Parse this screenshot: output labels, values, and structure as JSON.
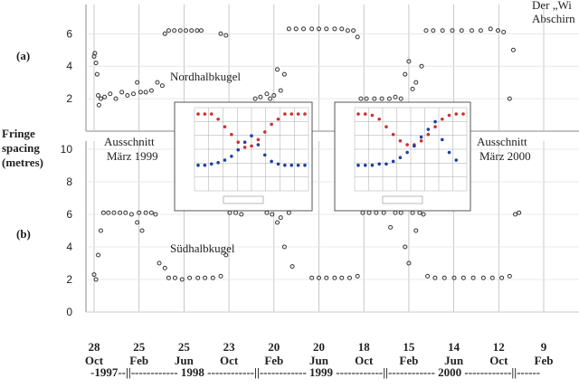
{
  "top_right_text": [
    "Der „Wi",
    "Abschirn"
  ],
  "y_axis_label": [
    "Fringe",
    "spacing",
    "(metres)"
  ],
  "year_axis": "-1997--||------------ 1998 ------------||------------ 1999 ------------||------------ 2000 ------------||------",
  "annotations": {
    "north": "Nordhalbkugel",
    "south": "Südhalbkugel",
    "cut1": [
      "Ausschnitt",
      "März 1999"
    ],
    "cut2": [
      "Ausschnitt",
      "März 2000"
    ]
  },
  "insets": [
    {
      "series": [
        {
          "color": "#d03030",
          "values": [
            6.0,
            6.0,
            6.0,
            5.6,
            5.0,
            4.4,
            3.8,
            3.4,
            3.5,
            4.0,
            4.6,
            5.2,
            5.6,
            6.0,
            6.0,
            6.0,
            6.0
          ]
        },
        {
          "color": "#2040a0",
          "values": [
            2.0,
            2.0,
            2.1,
            2.2,
            2.4,
            2.7,
            3.2,
            3.8,
            4.3,
            3.6,
            2.8,
            2.3,
            2.1,
            2.0,
            2.0,
            2.0,
            2.0
          ]
        }
      ]
    },
    {
      "series": [
        {
          "color": "#d03030",
          "values": [
            6.0,
            6.0,
            5.9,
            5.6,
            5.0,
            4.4,
            3.9,
            3.6,
            3.6,
            3.9,
            4.4,
            5.0,
            5.6,
            5.9,
            6.0,
            6.0
          ]
        },
        {
          "color": "#2040a0",
          "values": [
            2.0,
            2.0,
            2.0,
            2.1,
            2.1,
            2.3,
            2.6,
            3.0,
            3.5,
            4.2,
            4.8,
            5.4,
            4.0,
            3.0,
            2.4
          ]
        }
      ]
    }
  ],
  "chart_data": [
    {
      "type": "scatter",
      "label": "(a)",
      "color": "#333333",
      "xlim": [
        "1997-10-28",
        "2001-02-09"
      ],
      "ylim": [
        0,
        7.8
      ],
      "yticks": [
        2,
        4,
        6
      ],
      "xticks": [
        {
          "value": "1997-10-28",
          "label": "28 Oct"
        },
        {
          "value": "1998-02-25",
          "label": "25 Feb"
        },
        {
          "value": "1998-06-25",
          "label": "25 Jun"
        },
        {
          "value": "1998-10-23",
          "label": "23 Oct"
        },
        {
          "value": "1999-02-20",
          "label": "20 Feb"
        },
        {
          "value": "1999-06-20",
          "label": "20 Jun"
        },
        {
          "value": "1999-10-18",
          "label": "18 Oct"
        },
        {
          "value": "2000-02-15",
          "label": "15 Feb"
        },
        {
          "value": "2000-06-14",
          "label": "14 Jun"
        },
        {
          "value": "2000-10-12",
          "label": "12 Oct"
        },
        {
          "value": "2001-02-09",
          "label": "9 Feb"
        }
      ],
      "x": [
        "1997-10-28",
        "1997-10-30",
        "1997-11-02",
        "1997-11-05",
        "1997-11-08",
        "1997-11-10",
        "1997-11-15",
        "1997-11-25",
        "1997-12-10",
        "1997-12-25",
        "1998-01-10",
        "1998-01-25",
        "1998-02-10",
        "1998-02-20",
        "1998-03-01",
        "1998-03-15",
        "1998-03-30",
        "1998-04-15",
        "1998-04-28",
        "1998-05-05",
        "1998-05-15",
        "1998-05-30",
        "1998-06-15",
        "1998-06-30",
        "1998-07-15",
        "1998-07-30",
        "1998-08-10",
        "1998-10-01",
        "1998-10-15",
        "1999-01-01",
        "1999-01-15",
        "1999-02-01",
        "1999-02-10",
        "1999-02-20",
        "1999-03-01",
        "1999-03-10",
        "1999-03-20",
        "1999-04-01",
        "1999-04-20",
        "1999-05-10",
        "1999-06-01",
        "1999-06-20",
        "1999-07-10",
        "1999-08-01",
        "1999-08-20",
        "1999-09-05",
        "1999-09-20",
        "1999-10-01",
        "1999-10-10",
        "1999-10-25",
        "1999-11-15",
        "1999-12-05",
        "1999-12-25",
        "2000-01-10",
        "2000-01-25",
        "2000-02-05",
        "2000-02-15",
        "2000-02-25",
        "2000-03-05",
        "2000-03-20",
        "2000-04-01",
        "2000-04-20",
        "2000-05-15",
        "2000-06-10",
        "2000-07-05",
        "2000-08-01",
        "2000-08-25",
        "2000-09-20",
        "2000-10-10",
        "2000-10-25",
        "2000-11-10",
        "2000-11-20"
      ],
      "values": [
        4.6,
        4.8,
        4.2,
        3.5,
        2.2,
        1.6,
        2.0,
        2.1,
        2.3,
        2.0,
        2.4,
        2.2,
        2.3,
        3.0,
        2.4,
        2.4,
        2.5,
        3.0,
        2.8,
        6.0,
        6.2,
        6.2,
        6.2,
        6.2,
        6.2,
        6.2,
        6.2,
        6.0,
        5.9,
        2.0,
        2.1,
        2.3,
        2.0,
        2.2,
        3.8,
        2.5,
        3.5,
        6.3,
        6.3,
        6.3,
        6.3,
        6.3,
        6.3,
        6.3,
        6.3,
        6.2,
        6.2,
        5.8,
        2.0,
        2.0,
        2.0,
        2.0,
        2.0,
        2.1,
        2.0,
        3.5,
        4.3,
        2.6,
        3.0,
        4.0,
        6.2,
        6.2,
        6.2,
        6.2,
        6.2,
        6.2,
        6.2,
        6.3,
        6.2,
        6.1,
        2.0,
        5.0
      ]
    },
    {
      "type": "scatter",
      "label": "(b)",
      "color": "#333333",
      "xlim": [
        "1997-10-28",
        "2001-02-09"
      ],
      "ylim": [
        0,
        10.5
      ],
      "yticks": [
        0,
        2,
        4,
        6,
        8,
        10
      ],
      "x": [
        "1997-10-28",
        "1997-11-02",
        "1997-11-08",
        "1997-11-15",
        "1997-11-22",
        "1997-12-05",
        "1997-12-20",
        "1998-01-05",
        "1998-01-20",
        "1998-02-05",
        "1998-02-20",
        "1998-02-25",
        "1998-03-05",
        "1998-03-15",
        "1998-03-30",
        "1998-04-10",
        "1998-04-20",
        "1998-05-05",
        "1998-05-15",
        "1998-06-01",
        "1998-06-20",
        "1998-07-10",
        "1998-08-01",
        "1998-08-20",
        "1998-09-10",
        "1998-10-01",
        "1998-10-15",
        "1998-10-25",
        "1998-11-10",
        "1998-11-25",
        "1999-02-01",
        "1999-02-15",
        "1999-03-01",
        "1999-03-10",
        "1999-03-20",
        "1999-04-01",
        "1999-04-10",
        "1999-06-01",
        "1999-06-20",
        "1999-07-10",
        "1999-08-01",
        "1999-08-20",
        "1999-09-10",
        "1999-10-01",
        "1999-10-15",
        "1999-11-01",
        "1999-11-20",
        "1999-12-10",
        "1999-12-28",
        "2000-01-10",
        "2000-01-25",
        "2000-02-05",
        "2000-02-15",
        "2000-02-25",
        "2000-03-05",
        "2000-03-15",
        "2000-03-25",
        "2000-04-05",
        "2000-04-25",
        "2000-05-20",
        "2000-06-15",
        "2000-07-10",
        "2000-08-05",
        "2000-09-01",
        "2000-09-25",
        "2000-10-20",
        "2000-11-10",
        "2000-11-25",
        "2000-12-05"
      ],
      "values": [
        2.3,
        2.0,
        3.5,
        5.0,
        6.1,
        6.1,
        6.1,
        6.1,
        6.1,
        6.0,
        5.5,
        6.1,
        5.0,
        6.1,
        6.1,
        6.0,
        3.0,
        2.7,
        2.1,
        2.1,
        2.0,
        2.1,
        2.1,
        2.1,
        2.1,
        2.2,
        3.5,
        6.1,
        6.1,
        6.0,
        6.1,
        6.0,
        5.5,
        5.8,
        4.0,
        6.1,
        2.8,
        2.1,
        2.1,
        2.1,
        2.1,
        2.1,
        2.1,
        2.2,
        6.1,
        6.1,
        6.1,
        6.1,
        5.2,
        6.1,
        6.1,
        4.0,
        3.0,
        6.1,
        5.0,
        6.1,
        6.0,
        2.2,
        2.1,
        2.1,
        2.1,
        2.1,
        2.1,
        2.1,
        2.1,
        2.1,
        2.2,
        6.0,
        6.1
      ]
    }
  ]
}
